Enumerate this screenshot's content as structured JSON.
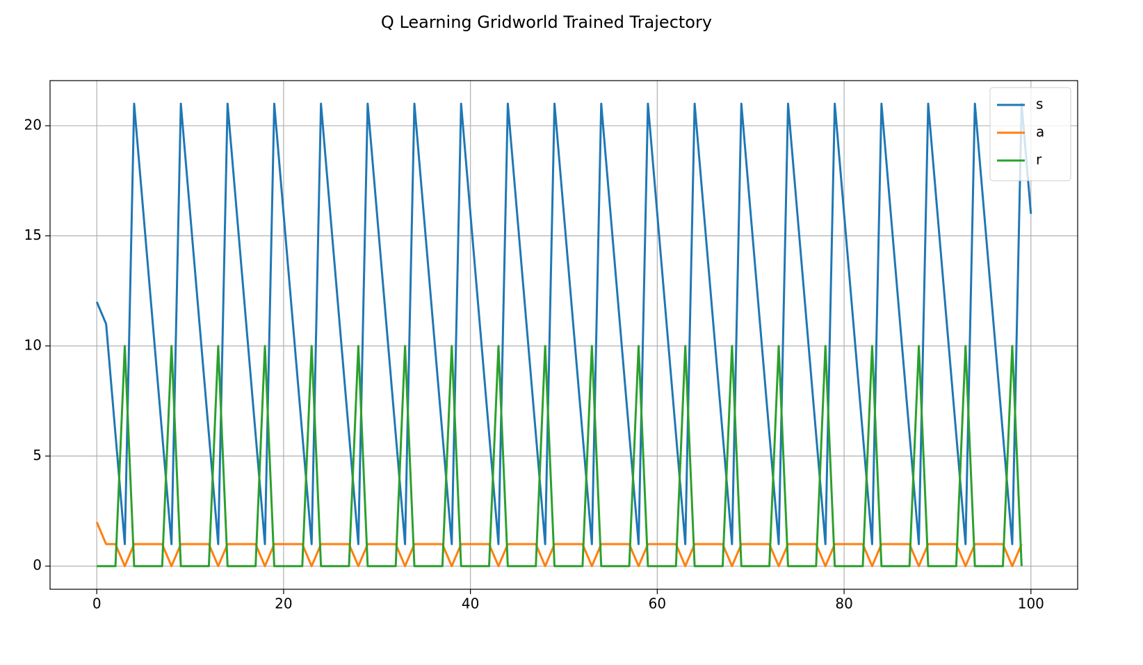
{
  "chart_data": {
    "type": "line",
    "title": "Q Learning Gridworld Trained Trajectory",
    "x": [
      0,
      1,
      2,
      3,
      4,
      5,
      6,
      7,
      8,
      9,
      10,
      11,
      12,
      13,
      14,
      15,
      16,
      17,
      18,
      19,
      20,
      21,
      22,
      23,
      24,
      25,
      26,
      27,
      28,
      29,
      30,
      31,
      32,
      33,
      34,
      35,
      36,
      37,
      38,
      39,
      40,
      41,
      42,
      43,
      44,
      45,
      46,
      47,
      48,
      49,
      50,
      51,
      52,
      53,
      54,
      55,
      56,
      57,
      58,
      59,
      60,
      61,
      62,
      63,
      64,
      65,
      66,
      67,
      68,
      69,
      70,
      71,
      72,
      73,
      74,
      75,
      76,
      77,
      78,
      79,
      80,
      81,
      82,
      83,
      84,
      85,
      86,
      87,
      88,
      89,
      90,
      91,
      92,
      93,
      94,
      95,
      96,
      97,
      98,
      99,
      100
    ],
    "series": [
      {
        "name": "s",
        "color": "#1f77b4",
        "values": [
          12,
          11,
          6,
          1,
          21,
          16,
          11,
          6,
          1,
          21,
          16,
          11,
          6,
          1,
          21,
          16,
          11,
          6,
          1,
          21,
          16,
          11,
          6,
          1,
          21,
          16,
          11,
          6,
          1,
          21,
          16,
          11,
          6,
          1,
          21,
          16,
          11,
          6,
          1,
          21,
          16,
          11,
          6,
          1,
          21,
          16,
          11,
          6,
          1,
          21,
          16,
          11,
          6,
          1,
          21,
          16,
          11,
          6,
          1,
          21,
          16,
          11,
          6,
          1,
          21,
          16,
          11,
          6,
          1,
          21,
          16,
          11,
          6,
          1,
          21,
          16,
          11,
          6,
          1,
          21,
          16,
          11,
          6,
          1,
          21,
          16,
          11,
          6,
          1,
          21,
          16,
          11,
          6,
          1,
          21,
          16,
          11,
          6,
          1,
          21,
          16
        ]
      },
      {
        "name": "a",
        "color": "#ff7f0e",
        "values": [
          2,
          1,
          1,
          0,
          1,
          1,
          1,
          1,
          0,
          1,
          1,
          1,
          1,
          0,
          1,
          1,
          1,
          1,
          0,
          1,
          1,
          1,
          1,
          0,
          1,
          1,
          1,
          1,
          0,
          1,
          1,
          1,
          1,
          0,
          1,
          1,
          1,
          1,
          0,
          1,
          1,
          1,
          1,
          0,
          1,
          1,
          1,
          1,
          0,
          1,
          1,
          1,
          1,
          0,
          1,
          1,
          1,
          1,
          0,
          1,
          1,
          1,
          1,
          0,
          1,
          1,
          1,
          1,
          0,
          1,
          1,
          1,
          1,
          0,
          1,
          1,
          1,
          1,
          0,
          1,
          1,
          1,
          1,
          0,
          1,
          1,
          1,
          1,
          0,
          1,
          1,
          1,
          1,
          0,
          1,
          1,
          1,
          1,
          0,
          1,
          null
        ]
      },
      {
        "name": "r",
        "color": "#2ca02c",
        "values": [
          0,
          0,
          0,
          10,
          0,
          0,
          0,
          0,
          10,
          0,
          0,
          0,
          0,
          10,
          0,
          0,
          0,
          0,
          10,
          0,
          0,
          0,
          0,
          10,
          0,
          0,
          0,
          0,
          10,
          0,
          0,
          0,
          0,
          10,
          0,
          0,
          0,
          0,
          10,
          0,
          0,
          0,
          0,
          10,
          0,
          0,
          0,
          0,
          10,
          0,
          0,
          0,
          0,
          10,
          0,
          0,
          0,
          0,
          10,
          0,
          0,
          0,
          0,
          10,
          0,
          0,
          0,
          0,
          10,
          0,
          0,
          0,
          0,
          10,
          0,
          0,
          0,
          0,
          10,
          0,
          0,
          0,
          0,
          10,
          0,
          0,
          0,
          0,
          10,
          0,
          0,
          0,
          0,
          10,
          0,
          0,
          0,
          0,
          10,
          0,
          null
        ]
      }
    ],
    "xlim": [
      -5,
      105
    ],
    "xticks": [
      0,
      20,
      40,
      60,
      80,
      100
    ],
    "ylim": [
      -1.05,
      22.05
    ],
    "yticks": [
      0,
      5,
      10,
      15,
      20
    ],
    "grid": true,
    "legend": "upper right"
  }
}
